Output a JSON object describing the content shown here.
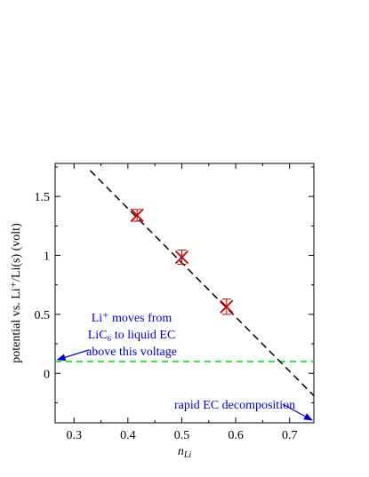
{
  "chart_data": {
    "type": "scatter",
    "xlabel_main": "n",
    "xlabel_sub": "Li",
    "ylabel": "potential vs. Li⁺/Li(s) (volt)",
    "xlim": [
      0.265,
      0.745
    ],
    "ylim": [
      -0.42,
      1.78
    ],
    "xticks": [
      {
        "value": 0.3,
        "label": "0.3"
      },
      {
        "value": 0.4,
        "label": "0.4"
      },
      {
        "value": 0.5,
        "label": "0.5"
      },
      {
        "value": 0.6,
        "label": "0.6"
      },
      {
        "value": 0.7,
        "label": "0.7"
      }
    ],
    "yticks": [
      {
        "value": 0,
        "label": "0"
      },
      {
        "value": 0.5,
        "label": "0.5"
      },
      {
        "value": 1,
        "label": "1"
      },
      {
        "value": 1.5,
        "label": "1.5"
      }
    ],
    "points": [
      {
        "x": 0.417,
        "y": 1.34,
        "err": 0.05
      },
      {
        "x": 0.5,
        "y": 0.985,
        "err": 0.06
      },
      {
        "x": 0.583,
        "y": 0.565,
        "err": 0.065
      }
    ],
    "fit_line": {
      "x": [
        0.33,
        0.745
      ],
      "y": [
        1.72,
        -0.19
      ],
      "style": "dashed",
      "color": "#000000"
    },
    "threshold_line": {
      "y": 0.1,
      "style": "dashed",
      "color": "#22dd22"
    },
    "point_color": "#cc0000",
    "annotation_color": "#0000cc",
    "annotations": [
      {
        "lines": [
          "Li⁺ moves from",
          "LiC₆ to liquid EC",
          "above this voltage"
        ],
        "arrow_to": {
          "x": 0.266,
          "y": 0.1
        }
      },
      {
        "lines": [
          "rapid EC decomposition"
        ],
        "arrow_to": {
          "x": 0.745,
          "y": -0.42
        }
      }
    ]
  }
}
